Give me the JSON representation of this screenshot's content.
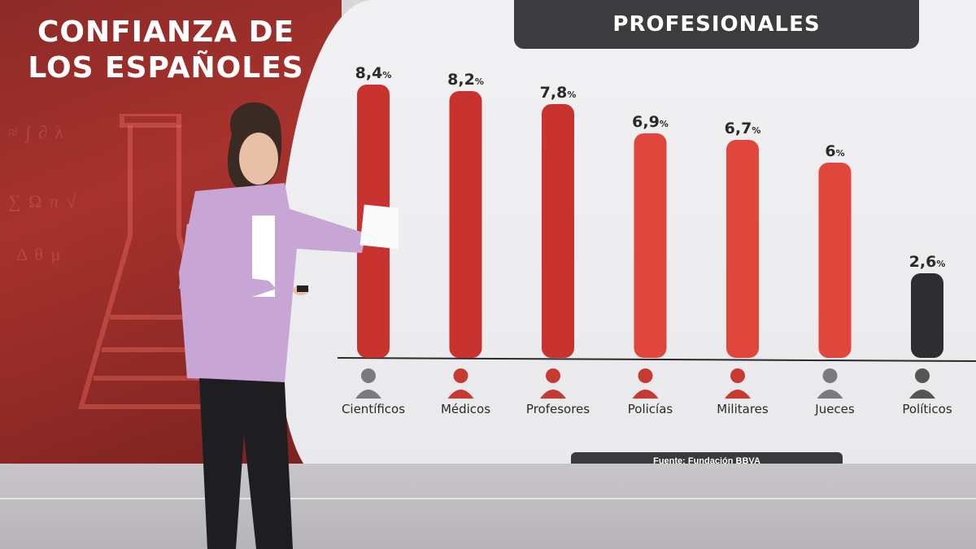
{
  "left_title": "CONFIANZA DE LOS ESPAÑOLES",
  "header": {
    "title": "PROFESIONALES"
  },
  "source": "Fuente: Fundación BBVA",
  "colors": {
    "bar_red": "#c8332f",
    "bar_red_light": "#e0463b",
    "bar_dark": "#2e2d2f",
    "header_bg": "#3c3b3d",
    "left_bg": "#a8322d"
  },
  "chart_data": {
    "type": "bar",
    "title": "PROFESIONALES",
    "categories": [
      "Científicos",
      "Médicos",
      "Profesores",
      "Policías",
      "Militares",
      "Jueces",
      "Políticos"
    ],
    "values": [
      8.4,
      8.2,
      7.8,
      6.9,
      6.7,
      6,
      2.6
    ],
    "value_labels": [
      "8,4",
      "8,2",
      "7,8",
      "6,9",
      "6,7",
      "6",
      "2,6"
    ],
    "unit": "%",
    "icons": [
      "scientist-icon",
      "doctor-icon",
      "teacher-icon",
      "police-icon",
      "soldier-icon",
      "judge-icon",
      "politician-icon"
    ],
    "ylim": [
      0,
      10
    ],
    "grid": false,
    "legend": "none"
  }
}
